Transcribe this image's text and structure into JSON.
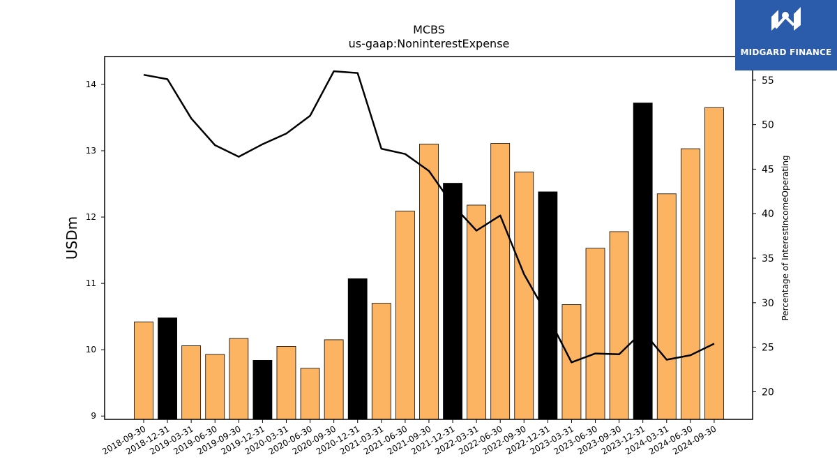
{
  "chart_data": {
    "type": "bar",
    "title": "MCBS",
    "subtitle": "us-gaap:NoninterestExpense",
    "ylabel": "USDm",
    "y2label": "Percentage of InterestIncomeOperating",
    "categories": [
      "2018-09-30",
      "2018-12-31",
      "2019-03-31",
      "2019-06-30",
      "2019-09-30",
      "2019-12-31",
      "2020-03-31",
      "2020-06-30",
      "2020-09-30",
      "2020-12-31",
      "2021-03-31",
      "2021-06-30",
      "2021-09-30",
      "2021-12-31",
      "2022-03-31",
      "2022-06-30",
      "2022-09-30",
      "2022-12-31",
      "2023-03-31",
      "2023-06-30",
      "2023-09-30",
      "2023-12-31",
      "2024-03-31",
      "2024-06-30",
      "2024-09-30"
    ],
    "series": [
      {
        "values": [
          10.42,
          10.48,
          10.06,
          9.93,
          10.17,
          9.84,
          10.05,
          9.72,
          10.15,
          11.07,
          10.7,
          12.09,
          13.1,
          12.51,
          12.18,
          13.11,
          12.68,
          12.38,
          10.68,
          11.53,
          11.78,
          13.72,
          12.35,
          13.03,
          13.65
        ]
      },
      {
        "type": "line",
        "axis": "right",
        "values": [
          55.6,
          55.1,
          50.7,
          47.7,
          46.4,
          47.8,
          49.0,
          51.0,
          56.0,
          55.8,
          47.3,
          46.7,
          44.8,
          41.0,
          38.1,
          39.8,
          33.2,
          28.5,
          23.3,
          24.3,
          24.2,
          26.8,
          23.6,
          24.1,
          25.4
        ]
      }
    ],
    "highlight_categories": [
      "2018-12-31",
      "2019-12-31",
      "2020-12-31",
      "2021-12-31",
      "2022-12-31",
      "2023-12-31"
    ],
    "ylim": [
      8.95,
      14.42
    ],
    "y_ticks": [
      9,
      10,
      11,
      12,
      13,
      14
    ],
    "y2lim": [
      16.9,
      57.65
    ],
    "y2_ticks": [
      20,
      25,
      30,
      35,
      40,
      45,
      50,
      55
    ],
    "colors": {
      "bar": "#FDB462",
      "bar_highlight": "#000000",
      "line": "#000000"
    },
    "grid": false
  },
  "logo": {
    "text": "MIDGARD FINANCE"
  }
}
